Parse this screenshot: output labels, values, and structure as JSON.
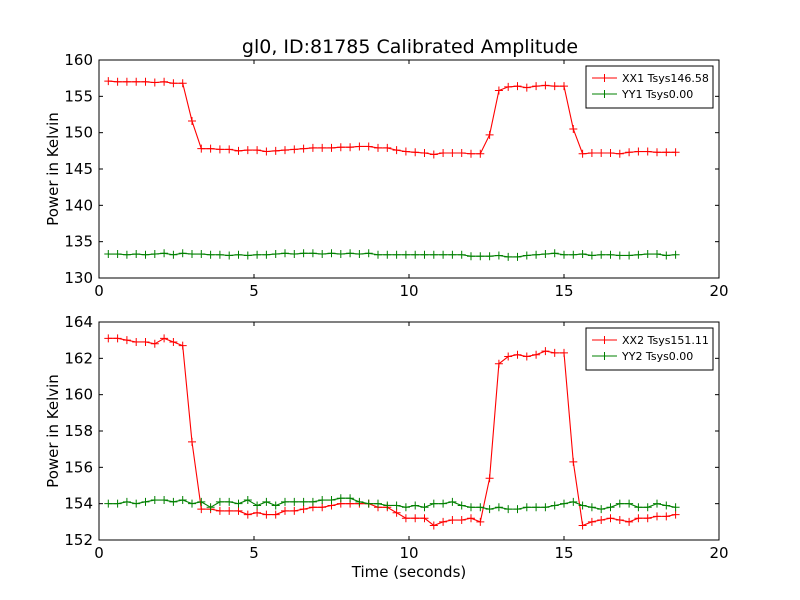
{
  "title": "gl0, ID:81785 Calibrated Amplitude",
  "chart_data": [
    {
      "type": "line",
      "ylabel": "Power in Kelvin",
      "xlabel": "",
      "xlim": [
        0,
        20
      ],
      "ylim": [
        130,
        160
      ],
      "xticks": [
        0,
        5,
        10,
        15,
        20
      ],
      "yticks": [
        130,
        135,
        140,
        145,
        150,
        155,
        160
      ],
      "legend_position": "top-right",
      "x": [
        0.3,
        0.6,
        0.9,
        1.2,
        1.5,
        1.8,
        2.1,
        2.4,
        2.7,
        3.0,
        3.3,
        3.6,
        3.9,
        4.2,
        4.5,
        4.8,
        5.1,
        5.4,
        5.7,
        6.0,
        6.3,
        6.6,
        6.9,
        7.2,
        7.5,
        7.8,
        8.1,
        8.4,
        8.7,
        9.0,
        9.3,
        9.6,
        9.9,
        10.2,
        10.5,
        10.8,
        11.1,
        11.4,
        11.7,
        12.0,
        12.3,
        12.6,
        12.9,
        13.2,
        13.5,
        13.8,
        14.1,
        14.4,
        14.7,
        15.0,
        15.3,
        15.6,
        15.9,
        16.2,
        16.5,
        16.8,
        17.1,
        17.4,
        17.7,
        18.0,
        18.3,
        18.6
      ],
      "series": [
        {
          "name": "XX1 Tsys146.58",
          "color": "#ff0000",
          "values": [
            157.1,
            157.0,
            157.0,
            157.0,
            157.0,
            156.9,
            157.0,
            156.8,
            156.8,
            151.6,
            147.8,
            147.8,
            147.7,
            147.7,
            147.5,
            147.6,
            147.6,
            147.4,
            147.5,
            147.6,
            147.7,
            147.8,
            147.9,
            147.9,
            147.9,
            148.0,
            148.0,
            148.1,
            148.1,
            147.9,
            147.9,
            147.6,
            147.4,
            147.3,
            147.2,
            147.0,
            147.2,
            147.2,
            147.2,
            147.1,
            147.1,
            149.7,
            155.8,
            156.3,
            156.4,
            156.2,
            156.4,
            156.5,
            156.4,
            156.4,
            150.5,
            147.1,
            147.2,
            147.2,
            147.2,
            147.1,
            147.3,
            147.4,
            147.4,
            147.3,
            147.3,
            147.3
          ]
        },
        {
          "name": "YY1 Tsys0.00",
          "color": "#008000",
          "values": [
            133.3,
            133.3,
            133.2,
            133.3,
            133.2,
            133.3,
            133.4,
            133.2,
            133.4,
            133.3,
            133.3,
            133.2,
            133.2,
            133.1,
            133.2,
            133.1,
            133.2,
            133.2,
            133.3,
            133.4,
            133.3,
            133.4,
            133.4,
            133.3,
            133.4,
            133.3,
            133.4,
            133.3,
            133.4,
            133.2,
            133.2,
            133.2,
            133.2,
            133.2,
            133.2,
            133.2,
            133.2,
            133.2,
            133.2,
            133.0,
            133.0,
            133.0,
            133.1,
            132.9,
            132.9,
            133.1,
            133.2,
            133.3,
            133.4,
            133.2,
            133.2,
            133.3,
            133.1,
            133.2,
            133.2,
            133.1,
            133.1,
            133.2,
            133.3,
            133.3,
            133.1,
            133.2
          ]
        }
      ]
    },
    {
      "type": "line",
      "ylabel": "Power in Kelvin",
      "xlabel": "Time (seconds)",
      "xlim": [
        0,
        20
      ],
      "ylim": [
        152,
        164
      ],
      "xticks": [
        0,
        5,
        10,
        15,
        20
      ],
      "yticks": [
        152,
        154,
        156,
        158,
        160,
        162,
        164
      ],
      "legend_position": "top-right",
      "x": [
        0.3,
        0.6,
        0.9,
        1.2,
        1.5,
        1.8,
        2.1,
        2.4,
        2.7,
        3.0,
        3.3,
        3.6,
        3.9,
        4.2,
        4.5,
        4.8,
        5.1,
        5.4,
        5.7,
        6.0,
        6.3,
        6.6,
        6.9,
        7.2,
        7.5,
        7.8,
        8.1,
        8.4,
        8.7,
        9.0,
        9.3,
        9.6,
        9.9,
        10.2,
        10.5,
        10.8,
        11.1,
        11.4,
        11.7,
        12.0,
        12.3,
        12.6,
        12.9,
        13.2,
        13.5,
        13.8,
        14.1,
        14.4,
        14.7,
        15.0,
        15.3,
        15.6,
        15.9,
        16.2,
        16.5,
        16.8,
        17.1,
        17.4,
        17.7,
        18.0,
        18.3,
        18.6
      ],
      "series": [
        {
          "name": "XX2 Tsys151.11",
          "color": "#ff0000",
          "values": [
            163.1,
            163.1,
            163.0,
            162.9,
            162.9,
            162.8,
            163.1,
            162.9,
            162.7,
            157.4,
            153.7,
            153.7,
            153.6,
            153.6,
            153.6,
            153.4,
            153.5,
            153.4,
            153.4,
            153.6,
            153.6,
            153.7,
            153.8,
            153.8,
            153.9,
            154.0,
            154.0,
            154.0,
            154.0,
            153.8,
            153.8,
            153.5,
            153.2,
            153.2,
            153.2,
            152.8,
            153.0,
            153.1,
            153.1,
            153.2,
            153.0,
            155.4,
            161.7,
            162.1,
            162.2,
            162.1,
            162.2,
            162.4,
            162.3,
            162.3,
            156.3,
            152.8,
            153.0,
            153.1,
            153.2,
            153.1,
            153.0,
            153.2,
            153.2,
            153.3,
            153.3,
            153.4
          ]
        },
        {
          "name": "YY2 Tsys0.00",
          "color": "#008000",
          "values": [
            154.0,
            154.0,
            154.1,
            154.0,
            154.1,
            154.2,
            154.2,
            154.1,
            154.2,
            154.0,
            154.1,
            153.8,
            154.1,
            154.1,
            154.0,
            154.2,
            153.9,
            154.1,
            153.9,
            154.1,
            154.1,
            154.1,
            154.1,
            154.2,
            154.2,
            154.3,
            154.3,
            154.1,
            154.0,
            154.0,
            153.9,
            153.9,
            153.8,
            153.9,
            153.8,
            154.0,
            154.0,
            154.1,
            153.9,
            153.8,
            153.8,
            153.7,
            153.8,
            153.7,
            153.7,
            153.8,
            153.8,
            153.8,
            153.9,
            154.0,
            154.1,
            153.9,
            153.8,
            153.7,
            153.8,
            154.0,
            154.0,
            153.8,
            153.8,
            154.0,
            153.9,
            153.8
          ]
        }
      ]
    }
  ]
}
